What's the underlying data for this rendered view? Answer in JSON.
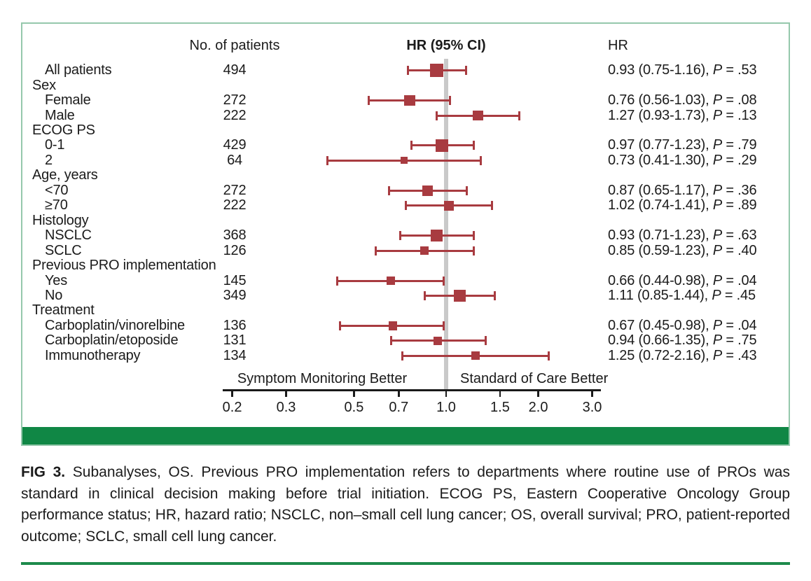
{
  "figure": {
    "caption_label": "FIG 3.",
    "caption_text": " Subanalyses, OS. Previous PRO implementation refers to departments where routine use of PROs was standard in clinical decision making before trial initiation. ECOG PS, Eastern Cooperative Oncology Group performance status; HR, hazard ratio; NSCLC, non–small cell lung cancer; OS, overall survival; PRO, patient-reported outcome; SCLC, small cell lung cancer."
  },
  "chart_data": {
    "type": "forest",
    "title": "HR (95% CI)",
    "columns": {
      "patients_header": "No. of patients",
      "plot_header": "HR (95% CI)",
      "hr_header": "HR"
    },
    "axis": {
      "scale": "log",
      "ticks": [
        0.2,
        0.3,
        0.5,
        0.7,
        1.0,
        1.5,
        2.0,
        3.0
      ],
      "reference_line": 1.0,
      "left_label": "Symptom Monitoring Better",
      "right_label": "Standard of Care Better"
    },
    "rows": [
      {
        "label": "All patients",
        "group": false,
        "indent": 0,
        "n": 494,
        "hr": 0.93,
        "lo": 0.75,
        "hi": 1.16,
        "hr_ci": "0.93 (0.75-1.16)",
        "p": ".53"
      },
      {
        "label": "Sex",
        "group": true
      },
      {
        "label": "Female",
        "group": false,
        "indent": 1,
        "n": 272,
        "hr": 0.76,
        "lo": 0.56,
        "hi": 1.03,
        "hr_ci": "0.76 (0.56-1.03)",
        "p": ".08"
      },
      {
        "label": "Male",
        "group": false,
        "indent": 1,
        "n": 222,
        "hr": 1.27,
        "lo": 0.93,
        "hi": 1.73,
        "hr_ci": "1.27 (0.93-1.73)",
        "p": ".13"
      },
      {
        "label": "ECOG PS",
        "group": true
      },
      {
        "label": "0-1",
        "group": false,
        "indent": 1,
        "n": 429,
        "hr": 0.97,
        "lo": 0.77,
        "hi": 1.23,
        "hr_ci": "0.97 (0.77-1.23)",
        "p": ".79"
      },
      {
        "label": "2",
        "group": false,
        "indent": 1,
        "n": 64,
        "hr": 0.73,
        "lo": 0.41,
        "hi": 1.3,
        "hr_ci": "0.73 (0.41-1.30)",
        "p": ".29"
      },
      {
        "label": "Age, years",
        "group": true
      },
      {
        "label": "<70",
        "group": false,
        "indent": 1,
        "n": 272,
        "hr": 0.87,
        "lo": 0.65,
        "hi": 1.17,
        "hr_ci": "0.87 (0.65-1.17)",
        "p": ".36"
      },
      {
        "label": "≥70",
        "group": false,
        "indent": 1,
        "n": 222,
        "hr": 1.02,
        "lo": 0.74,
        "hi": 1.41,
        "hr_ci": "1.02 (0.74-1.41)",
        "p": ".89"
      },
      {
        "label": "Histology",
        "group": true
      },
      {
        "label": "NSCLC",
        "group": false,
        "indent": 1,
        "n": 368,
        "hr": 0.93,
        "lo": 0.71,
        "hi": 1.23,
        "hr_ci": "0.93 (0.71-1.23)",
        "p": ".63"
      },
      {
        "label": "SCLC",
        "group": false,
        "indent": 1,
        "n": 126,
        "hr": 0.85,
        "lo": 0.59,
        "hi": 1.23,
        "hr_ci": "0.85 (0.59-1.23)",
        "p": ".40"
      },
      {
        "label": "Previous PRO implementation",
        "group": true
      },
      {
        "label": "Yes",
        "group": false,
        "indent": 1,
        "n": 145,
        "hr": 0.66,
        "lo": 0.44,
        "hi": 0.98,
        "hr_ci": "0.66 (0.44-0.98)",
        "p": ".04"
      },
      {
        "label": "No",
        "group": false,
        "indent": 1,
        "n": 349,
        "hr": 1.11,
        "lo": 0.85,
        "hi": 1.44,
        "hr_ci": "1.11 (0.85-1.44)",
        "p": ".45"
      },
      {
        "label": "Treatment",
        "group": true
      },
      {
        "label": "Carboplatin/vinorelbine",
        "group": false,
        "indent": 1,
        "n": 136,
        "hr": 0.67,
        "lo": 0.45,
        "hi": 0.98,
        "hr_ci": "0.67 (0.45-0.98)",
        "p": ".04"
      },
      {
        "label": "Carboplatin/etoposide",
        "group": false,
        "indent": 1,
        "n": 131,
        "hr": 0.94,
        "lo": 0.66,
        "hi": 1.35,
        "hr_ci": "0.94 (0.66-1.35)",
        "p": ".75"
      },
      {
        "label": "Immunotherapy",
        "group": false,
        "indent": 1,
        "n": 134,
        "hr": 1.25,
        "lo": 0.72,
        "hi": 2.16,
        "hr_ci": "1.25 (0.72-2.16)",
        "p": ".43"
      }
    ],
    "colors": {
      "marker": "#a83b40",
      "reference_line": "#c9c9c9",
      "axis": "#1a1a1a",
      "footer_bar_green": "#108745",
      "panel_border_green": "#95c8ac",
      "bottom_rule_green": "#1d8a4b"
    }
  }
}
